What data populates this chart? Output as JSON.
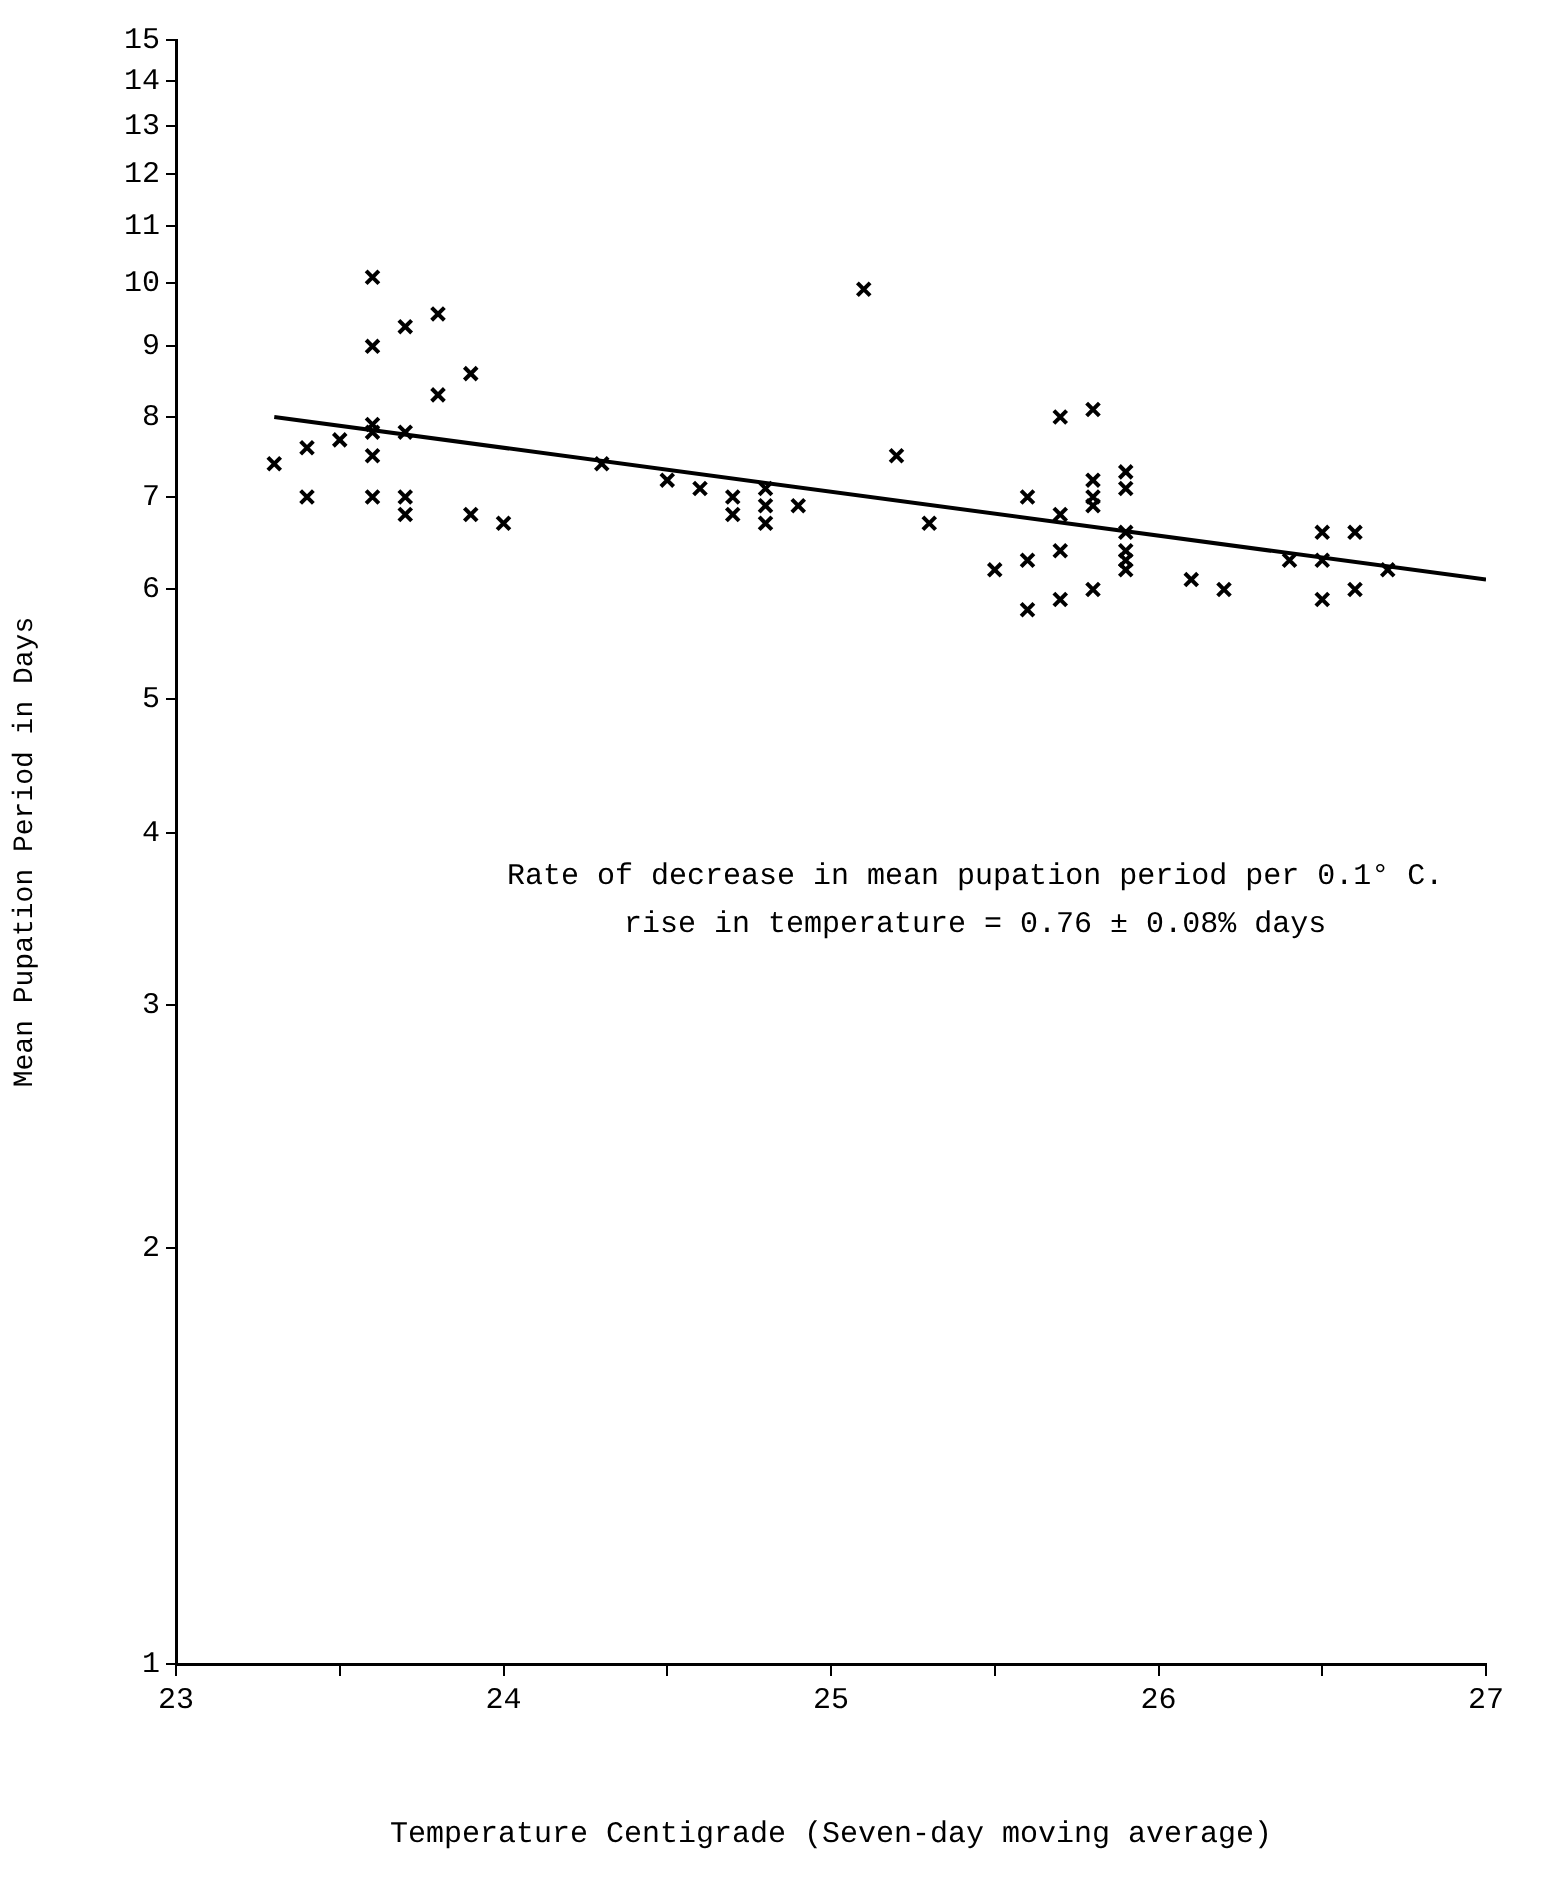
{
  "chart_data": {
    "type": "scatter",
    "xlabel": "Temperature Centigrade (Seven-day moving average)",
    "ylabel": "Mean Pupation Period in Days",
    "log": "y",
    "marker": "cross",
    "xlim": [
      23,
      27
    ],
    "xticks": [
      23,
      {
        "value": 23.5,
        "label": null
      },
      24,
      {
        "value": 24.5,
        "label": null
      },
      25,
      {
        "value": 25.5,
        "label": null
      },
      26,
      {
        "value": 26.5,
        "label": null
      },
      27
    ],
    "ylim": [
      1,
      15
    ],
    "yticks": [
      1,
      2,
      3,
      4,
      5,
      6,
      7,
      8,
      9,
      10,
      11,
      12,
      13,
      14,
      15
    ],
    "annotations": [
      "Rate of decrease in mean pupation period per 0.1° C.",
      "rise in temperature = 0.76 ± 0.08% days"
    ],
    "series": [
      {
        "type": "scatter",
        "color": "#000000",
        "x": [
          23.3,
          23.4,
          23.4,
          23.5,
          23.6,
          23.6,
          23.6,
          23.6,
          23.6,
          23.6,
          23.7,
          23.7,
          23.7,
          23.7,
          23.8,
          23.8,
          23.9,
          23.9,
          24.0,
          24.3,
          24.5,
          24.6,
          24.7,
          24.7,
          24.8,
          24.8,
          24.8,
          24.9,
          25.1,
          25.2,
          25.3,
          25.5,
          25.6,
          25.6,
          25.6,
          25.7,
          25.7,
          25.7,
          25.7,
          25.8,
          25.8,
          25.8,
          25.8,
          25.8,
          25.9,
          25.9,
          25.9,
          25.9,
          25.9,
          25.9,
          26.1,
          26.2,
          26.4,
          26.5,
          26.5,
          26.5,
          26.6,
          26.6,
          26.7
        ],
        "values": [
          7.4,
          7.6,
          7.0,
          7.7,
          10.1,
          9.0,
          7.9,
          7.8,
          7.5,
          7.0,
          9.3,
          7.8,
          7.0,
          6.8,
          9.5,
          8.3,
          8.6,
          6.8,
          6.7,
          7.4,
          7.2,
          7.1,
          7.0,
          6.8,
          7.1,
          6.9,
          6.7,
          6.9,
          9.9,
          7.5,
          6.7,
          6.2,
          7.0,
          6.3,
          5.8,
          8.0,
          6.8,
          6.4,
          5.9,
          8.1,
          7.2,
          7.0,
          6.9,
          6.0,
          7.3,
          7.1,
          6.6,
          6.4,
          6.3,
          6.2,
          6.1,
          6.0,
          6.3,
          6.6,
          6.3,
          5.9,
          6.6,
          6.0,
          6.2
        ]
      },
      {
        "type": "line",
        "color": "#000000",
        "marker": "none",
        "x": [
          23.3,
          27
        ],
        "values": [
          8.0,
          6.1
        ]
      }
    ]
  }
}
